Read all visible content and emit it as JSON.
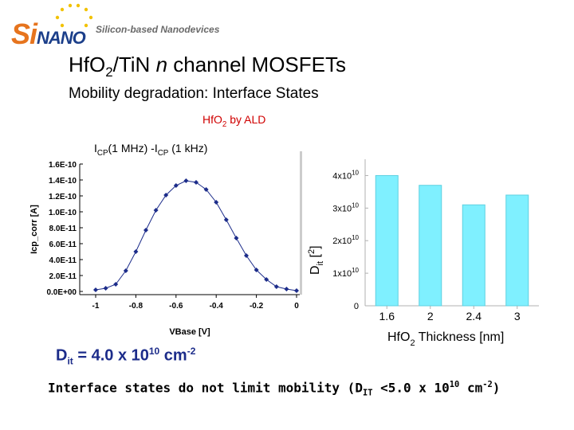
{
  "header": {
    "logo_s": "Si",
    "logo_rest": "NANO",
    "tagline": "Silicon-based Nanodevices"
  },
  "title": {
    "part1": "Hf",
    "part2": "O",
    "sub2": "2",
    "part3": "/TiN ",
    "italic_n": "n",
    "part4": " channel MOSFETs"
  },
  "subtitle": "Mobility degradation: Interface States",
  "material_label": {
    "text": "HfO",
    "sub": "2",
    "rest": " by ALD",
    "color": "#d00000"
  },
  "icp_title": {
    "a": "I",
    "sub1": "CP",
    "b": "(1 MHz) -I",
    "sub2": "CP",
    "c": " (1 kHz)"
  },
  "chart_data": [
    {
      "type": "line",
      "xlabel": "VBase [V]",
      "ylabel": "Icp_corr [A]",
      "x_ticks": [
        "-1",
        "-0.8",
        "-0.6",
        "-0.4",
        "-0.2",
        "0"
      ],
      "y_ticks": [
        "0.0E+00",
        "2.0E-11",
        "4.0E-11",
        "6.0E-11",
        "8.0E-11",
        "1.0E-10",
        "1.2E-10",
        "1.4E-10",
        "1.6E-10"
      ],
      "xlim": [
        -1.0,
        0.0
      ],
      "ylim": [
        0,
        1.6e-10
      ],
      "series": [
        {
          "x": [
            -1.0,
            -0.95,
            -0.9,
            -0.85,
            -0.8,
            -0.75,
            -0.7,
            -0.65,
            -0.6,
            -0.55,
            -0.5,
            -0.45,
            -0.4,
            -0.35,
            -0.3,
            -0.25,
            -0.2,
            -0.15,
            -0.1,
            -0.05,
            0.0
          ],
          "y": [
            2e-12,
            4e-12,
            9e-12,
            2.6e-11,
            5e-11,
            7.7e-11,
            1.02e-10,
            1.21e-10,
            1.33e-10,
            1.39e-10,
            1.37e-10,
            1.28e-10,
            1.12e-10,
            9e-11,
            6.7e-11,
            4.5e-11,
            2.7e-11,
            1.5e-11,
            6e-12,
            3e-12,
            1e-12
          ]
        }
      ],
      "color": "#1c2c8a"
    },
    {
      "type": "bar",
      "categories": [
        "1.6",
        "2",
        "2.4",
        "3"
      ],
      "values": [
        40000000000.0,
        37000000000.0,
        31000000000.0,
        34000000000.0
      ],
      "y_ticks": [
        "0",
        "1x10",
        "2x10",
        "3x10",
        "4x10"
      ],
      "y_tick_exp": "10",
      "xlabel_a": "HfO",
      "xlabel_sub": "2",
      "xlabel_b": " Thickness [nm]",
      "ylabel_a": "D",
      "ylabel_b": "it",
      "ylabel_c": " [",
      "ylabel_d": "2",
      "ylabel_e": "]",
      "ylim": [
        0,
        45000000000.0
      ],
      "bar_color": "#7ff0ff"
    }
  ],
  "dit": {
    "a": "D",
    "sub": "it",
    "b": " = 4.0 x 10",
    "sup1": "10",
    "c": " cm",
    "sup2": "-2"
  },
  "conclusion": {
    "a": "Interface states do not limit  mobility (D",
    "sub": "IT",
    "b": " <5.0 x 10",
    "sup1": "10",
    "c": " cm",
    "sup2": "-2",
    "d": ")"
  }
}
